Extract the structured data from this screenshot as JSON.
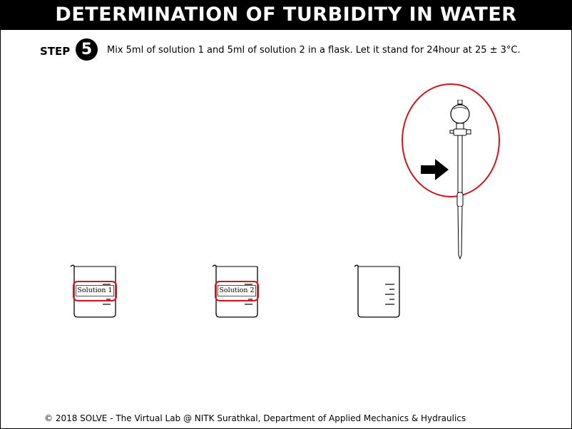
{
  "header": {
    "title": "DETERMINATION OF TURBIDITY IN WATER"
  },
  "step": {
    "label": "STEP",
    "number": "5",
    "instruction": "Mix 5ml of solution 1 and 5ml of solution 2 in a flask. Let it stand for 24hour at 25 ± 3°C."
  },
  "beakers": [
    {
      "label": "Solution 1"
    },
    {
      "label": "Solution 2"
    },
    {
      "label": ""
    }
  ],
  "colors": {
    "highlight": "#d0141c",
    "header_bg": "#000000",
    "header_text": "#ffffff"
  },
  "icons": {
    "pipette": "pipette-icon",
    "arrow": "right-arrow-icon"
  },
  "footer": {
    "text": "© 2018 SOLVE - The Virtual Lab @ NITK Surathkal, Department of Applied Mechanics & Hydraulics"
  }
}
